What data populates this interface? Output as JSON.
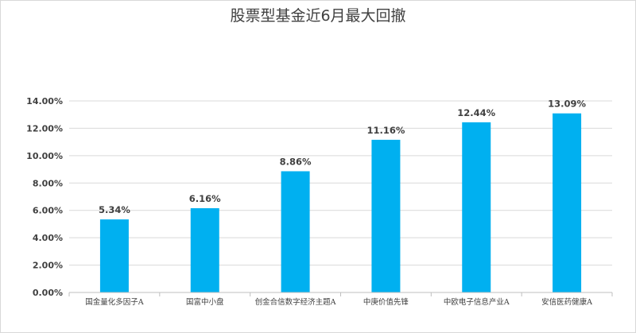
{
  "chart_data": {
    "type": "bar",
    "title": "股票型基金近6月最大回撤",
    "categories": [
      "国金量化多因子A",
      "国富中小盘",
      "创金合信数字经济主题A",
      "中庚价值先锋",
      "中欧电子信息产业A",
      "安信医药健康A"
    ],
    "values": [
      5.34,
      6.16,
      8.86,
      11.16,
      12.44,
      13.09
    ],
    "data_labels": [
      "5.34%",
      "6.16%",
      "8.86%",
      "11.16%",
      "12.44%",
      "13.09%"
    ],
    "yticks": [
      "0.00%",
      "2.00%",
      "4.00%",
      "6.00%",
      "8.00%",
      "10.00%",
      "12.00%",
      "14.00%"
    ],
    "ylim": [
      0,
      14
    ],
    "xlabel": "",
    "ylabel": "",
    "grid": true,
    "bar_color": "#00b0f0"
  }
}
